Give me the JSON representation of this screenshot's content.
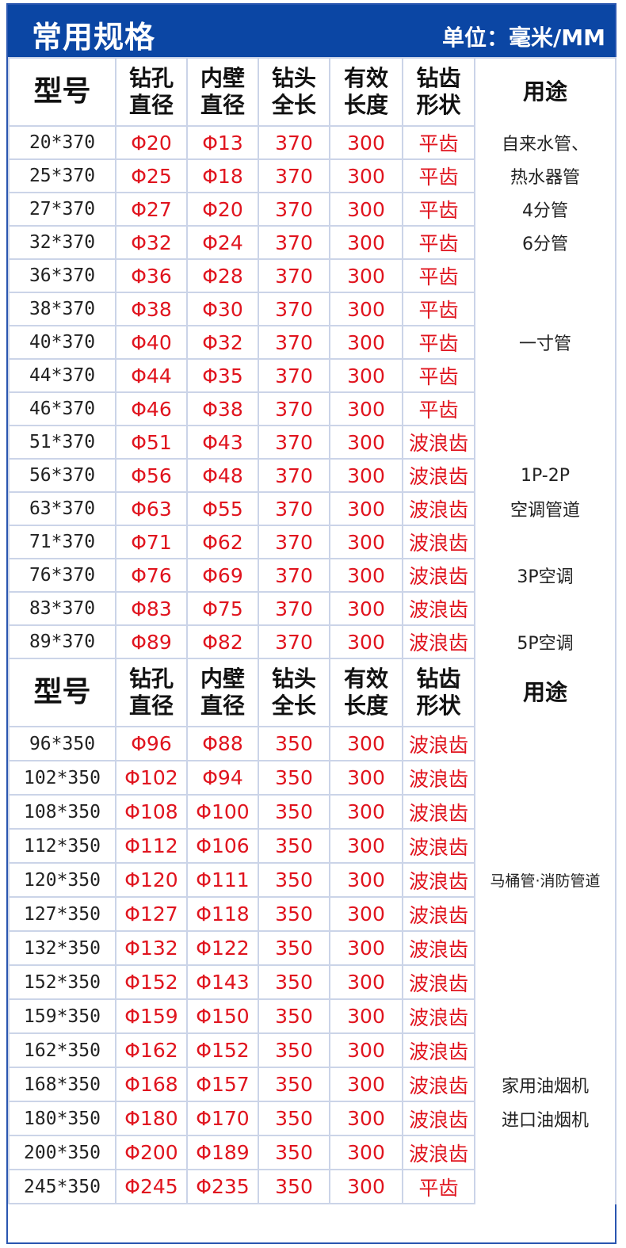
{
  "header": {
    "title": "常用规格",
    "unit": "单位：毫米/MM"
  },
  "columns": [
    "型号",
    "钻孔\n直径",
    "内壁\n直径",
    "钻头\n全长",
    "有效\n长度",
    "钻齿\n形状",
    "用途"
  ],
  "colors": {
    "header_bg": "#0b46a4",
    "value_red": "#e0141e",
    "grid": "#cbd4e8"
  },
  "section1": [
    [
      "20*370",
      "Φ20",
      "Φ13",
      "370",
      "300",
      "平齿",
      "自来水管、"
    ],
    [
      "25*370",
      "Φ25",
      "Φ18",
      "370",
      "300",
      "平齿",
      "热水器管"
    ],
    [
      "27*370",
      "Φ27",
      "Φ20",
      "370",
      "300",
      "平齿",
      "4分管"
    ],
    [
      "32*370",
      "Φ32",
      "Φ24",
      "370",
      "300",
      "平齿",
      "6分管"
    ],
    [
      "36*370",
      "Φ36",
      "Φ28",
      "370",
      "300",
      "平齿",
      ""
    ],
    [
      "38*370",
      "Φ38",
      "Φ30",
      "370",
      "300",
      "平齿",
      ""
    ],
    [
      "40*370",
      "Φ40",
      "Φ32",
      "370",
      "300",
      "平齿",
      "一寸管"
    ],
    [
      "44*370",
      "Φ44",
      "Φ35",
      "370",
      "300",
      "平齿",
      ""
    ],
    [
      "46*370",
      "Φ46",
      "Φ38",
      "370",
      "300",
      "平齿",
      ""
    ],
    [
      "51*370",
      "Φ51",
      "Φ43",
      "370",
      "300",
      "波浪齿",
      ""
    ],
    [
      "56*370",
      "Φ56",
      "Φ48",
      "370",
      "300",
      "波浪齿",
      "1P-2P"
    ],
    [
      "63*370",
      "Φ63",
      "Φ55",
      "370",
      "300",
      "波浪齿",
      "空调管道"
    ],
    [
      "71*370",
      "Φ71",
      "Φ62",
      "370",
      "300",
      "波浪齿",
      ""
    ],
    [
      "76*370",
      "Φ76",
      "Φ69",
      "370",
      "300",
      "波浪齿",
      "3P空调"
    ],
    [
      "83*370",
      "Φ83",
      "Φ75",
      "370",
      "300",
      "波浪齿",
      ""
    ],
    [
      "89*370",
      "Φ89",
      "Φ82",
      "370",
      "300",
      "波浪齿",
      "5P空调"
    ]
  ],
  "section2": [
    [
      "96*350",
      "Φ96",
      "Φ88",
      "350",
      "300",
      "波浪齿",
      ""
    ],
    [
      "102*350",
      "Φ102",
      "Φ94",
      "350",
      "300",
      "波浪齿",
      ""
    ],
    [
      "108*350",
      "Φ108",
      "Φ100",
      "350",
      "300",
      "波浪齿",
      ""
    ],
    [
      "112*350",
      "Φ112",
      "Φ106",
      "350",
      "300",
      "波浪齿",
      ""
    ],
    [
      "120*350",
      "Φ120",
      "Φ111",
      "350",
      "300",
      "波浪齿",
      "马桶管·消防管道"
    ],
    [
      "127*350",
      "Φ127",
      "Φ118",
      "350",
      "300",
      "波浪齿",
      ""
    ],
    [
      "132*350",
      "Φ132",
      "Φ122",
      "350",
      "300",
      "波浪齿",
      ""
    ],
    [
      "152*350",
      "Φ152",
      "Φ143",
      "350",
      "300",
      "波浪齿",
      ""
    ],
    [
      "159*350",
      "Φ159",
      "Φ150",
      "350",
      "300",
      "波浪齿",
      ""
    ],
    [
      "162*350",
      "Φ162",
      "Φ152",
      "350",
      "300",
      "波浪齿",
      ""
    ],
    [
      "168*350",
      "Φ168",
      "Φ157",
      "350",
      "300",
      "波浪齿",
      "家用油烟机"
    ],
    [
      "180*350",
      "Φ180",
      "Φ170",
      "350",
      "300",
      "波浪齿",
      "进口油烟机"
    ],
    [
      "200*350",
      "Φ200",
      "Φ189",
      "350",
      "300",
      "波浪齿",
      ""
    ],
    [
      "245*350",
      "Φ245",
      "Φ235",
      "350",
      "300",
      "平齿",
      ""
    ]
  ]
}
